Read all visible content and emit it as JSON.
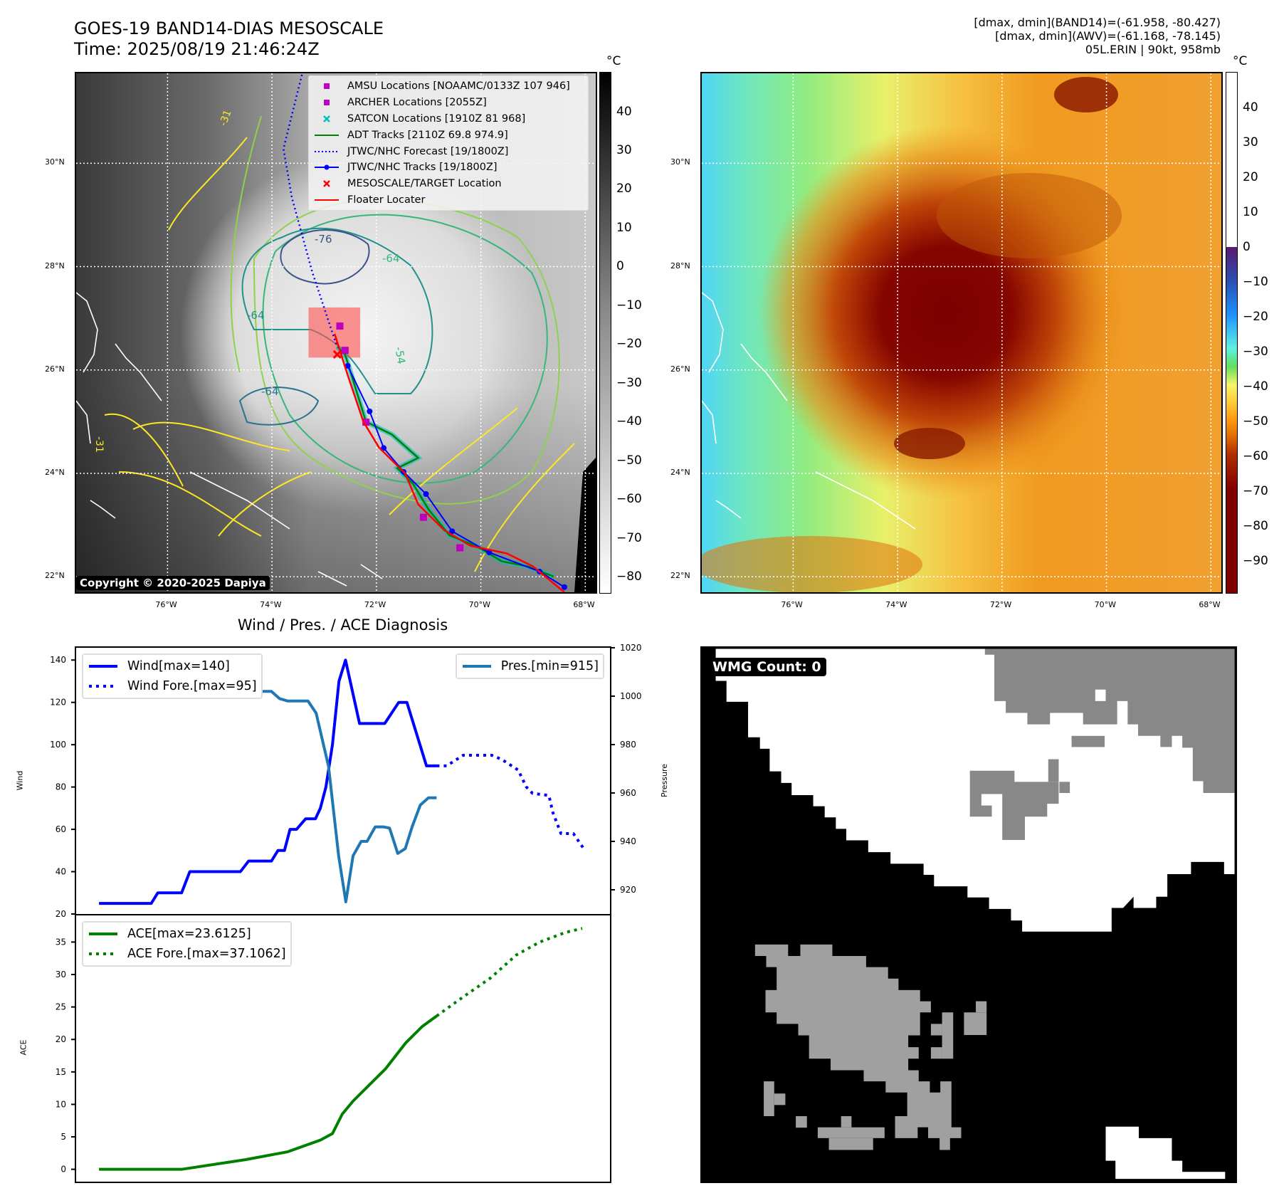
{
  "header": {
    "title_line1": "GOES-19 BAND14-DIAS MESOSCALE",
    "title_line2": "Time: 2025/08/19 21:46:24Z",
    "stats_line1": "[dmax, dmin](BAND14)=(-61.958, -80.427)",
    "stats_line2": "[dmax, dmin](AWV)=(-61.168, -78.145)",
    "stats_line3": "05L.ERIN | 90kt, 958mb"
  },
  "maps": {
    "lon_ticks": [
      -76,
      -74,
      -72,
      -70,
      -68
    ],
    "lon_labels": [
      "76°W",
      "74°W",
      "72°W",
      "70°W",
      "68°W"
    ],
    "lat_ticks": [
      30,
      28,
      26,
      24,
      22
    ],
    "lat_labels": [
      "30°N",
      "28°N",
      "26°N",
      "24°N",
      "22°N"
    ],
    "extent": {
      "lon_min": -77.75,
      "lon_max": -67.8,
      "lat_min": 21.7,
      "lat_max": 31.74
    },
    "copyright": "Copyright © 2020-2025 Dapiya",
    "legend": [
      {
        "label": "AMSU Locations [NOAAMC/0133Z 107 946]",
        "icon": "magenta-square",
        "color": "#c000c0"
      },
      {
        "label": "ARCHER Locations [2055Z]",
        "icon": "magenta-square",
        "color": "#c000c0"
      },
      {
        "label": "SATCON Locations [1910Z 81 968]",
        "icon": "cyan-x",
        "color": "#00c0c0"
      },
      {
        "label": "ADT Tracks [2110Z 69.8 974.9]",
        "icon": "green-line",
        "color": "#008000"
      },
      {
        "label": "JTWC/NHC Forecast [19/1800Z]",
        "icon": "blue-dotted-line",
        "color": "#0000ff"
      },
      {
        "label": "JTWC/NHC Tracks [19/1800Z]",
        "icon": "blue-line-dot",
        "color": "#0000ff"
      },
      {
        "label": "MESOSCALE/TARGET Location",
        "icon": "red-x",
        "color": "#ff0000"
      },
      {
        "label": "Floater Locater",
        "icon": "red-line",
        "color": "#ff0000"
      }
    ],
    "contour_labels": [
      "-76",
      "-64",
      "-64",
      "-64",
      "-54",
      "-31",
      "-31"
    ],
    "jtwc_track": [
      [
        -72.55,
        26.08
      ],
      [
        -72.13,
        25.2
      ],
      [
        -71.86,
        24.49
      ],
      [
        -71.48,
        24.03
      ],
      [
        -71.05,
        23.6
      ],
      [
        -70.55,
        22.88
      ],
      [
        -69.84,
        22.47
      ],
      [
        -68.875,
        22.1
      ],
      [
        -68.4,
        21.8
      ]
    ],
    "jtwc_forecast": [
      [
        -72.77,
        26.5
      ],
      [
        -73.23,
        27.9
      ],
      [
        -73.62,
        29.34
      ],
      [
        -73.78,
        30.28
      ],
      [
        -73.42,
        31.74
      ]
    ],
    "floater_track": [
      [
        -72.8,
        26.7
      ],
      [
        -72.55,
        25.9
      ],
      [
        -72.25,
        25.0
      ],
      [
        -71.95,
        24.5
      ],
      [
        -71.45,
        24.0
      ],
      [
        -71.2,
        23.4
      ],
      [
        -70.7,
        22.9
      ],
      [
        -70.2,
        22.6
      ],
      [
        -69.5,
        22.45
      ],
      [
        -69.0,
        22.2
      ],
      [
        -68.4,
        21.7
      ]
    ],
    "adt_track": [
      [
        -72.75,
        26.45
      ],
      [
        -72.6,
        26.3
      ],
      [
        -72.2,
        25.0
      ],
      [
        -71.7,
        24.75
      ],
      [
        -71.2,
        24.3
      ],
      [
        -71.6,
        24.1
      ],
      [
        -71.3,
        23.8
      ],
      [
        -71.0,
        23.3
      ],
      [
        -70.6,
        22.8
      ],
      [
        -70.1,
        22.6
      ],
      [
        -69.6,
        22.3
      ],
      [
        -69.1,
        22.2
      ],
      [
        -68.6,
        22.0
      ]
    ],
    "archer_points": [
      [
        -72.7,
        26.85
      ],
      [
        -72.6,
        26.38
      ],
      [
        -72.2,
        24.99
      ],
      [
        -71.1,
        23.15
      ],
      [
        -70.4,
        22.56
      ]
    ],
    "floater_box": {
      "lon_min": -73.3,
      "lon_max": -72.31,
      "lat_min": 26.24,
      "lat_max": 27.21
    },
    "target": [
      -72.75,
      26.3
    ],
    "left_colorbar": {
      "unit": "°C",
      "range": [
        50.2,
        -84.4
      ],
      "ticks": [
        40,
        30,
        20,
        10,
        0,
        -10,
        -20,
        -30,
        -40,
        -50,
        -60,
        -70,
        -80
      ],
      "tick_labels": [
        "40",
        "30",
        "20",
        "10",
        "0",
        "−10",
        "−20",
        "−30",
        "−40",
        "−50",
        "−60",
        "−70",
        "−80"
      ]
    },
    "right_colorbar": {
      "unit": "°C",
      "range": [
        50.1,
        -99.4
      ],
      "ticks": [
        40,
        30,
        20,
        10,
        0,
        -10,
        -20,
        -30,
        -40,
        -50,
        -60,
        -70,
        -80,
        -90
      ],
      "tick_labels": [
        "40",
        "30",
        "20",
        "10",
        "0",
        "−10",
        "−20",
        "−30",
        "−40",
        "−50",
        "−60",
        "−70",
        "−80",
        "−90"
      ]
    }
  },
  "chart_data": [
    {
      "type": "line",
      "title": "Wind / Pres. / ACE Diagnosis",
      "ylabel": "Wind",
      "y2label": "Pressure",
      "xlim": [
        -7,
        156.5
      ],
      "ylim": [
        20,
        145.8
      ],
      "y2lim": [
        910,
        1020
      ],
      "yticks": [
        20,
        40,
        60,
        80,
        100,
        120,
        140
      ],
      "y2ticks": [
        920,
        940,
        960,
        980,
        1000,
        1020
      ],
      "series": [
        {
          "name": "Wind[max=140]",
          "axis": "left",
          "style": "solid",
          "color": "#0000ff",
          "points": [
            [
              0,
              25
            ],
            [
              16,
              25
            ],
            [
              18,
              30
            ],
            [
              25.3,
              30
            ],
            [
              27.8,
              40
            ],
            [
              43.3,
              40
            ],
            [
              45.8,
              45
            ],
            [
              52.8,
              45
            ],
            [
              54.8,
              50
            ],
            [
              56.8,
              50
            ],
            [
              58.5,
              60
            ],
            [
              60.5,
              60
            ],
            [
              63.3,
              65
            ],
            [
              66.3,
              65
            ],
            [
              67.8,
              70
            ],
            [
              69.5,
              80
            ],
            [
              71.5,
              100
            ],
            [
              73.5,
              130
            ],
            [
              75.5,
              140
            ],
            [
              79.8,
              110
            ],
            [
              87.5,
              110
            ],
            [
              91.8,
              120
            ],
            [
              94.3,
              120
            ],
            [
              100.3,
              90
            ],
            [
              103.4,
              90
            ]
          ]
        },
        {
          "name": "Wind Fore.[max=95]",
          "axis": "left",
          "style": "dotted",
          "color": "#0000ff",
          "points": [
            [
              103.4,
              90
            ],
            [
              106.5,
              90
            ],
            [
              111.5,
              95
            ],
            [
              120.3,
              95
            ],
            [
              123.4,
              93
            ],
            [
              128.4,
              88
            ],
            [
              130.9,
              80
            ],
            [
              132.8,
              77
            ],
            [
              137.8,
              76
            ],
            [
              139,
              68
            ],
            [
              141.5,
              58
            ],
            [
              145.3,
              58
            ],
            [
              148.4,
              51
            ]
          ]
        },
        {
          "name": "Pres.[min=915]",
          "axis": "right",
          "style": "solid",
          "color": "#1f77b4",
          "points": [
            [
              0,
              1015
            ],
            [
              2.1,
              1015
            ],
            [
              4.6,
              1008
            ],
            [
              9,
              1006
            ],
            [
              25.3,
              1006
            ],
            [
              27.8,
              1004
            ],
            [
              34,
              1004
            ],
            [
              37,
              1006
            ],
            [
              40,
              1004
            ],
            [
              45.3,
              1002
            ],
            [
              52.8,
              1002
            ],
            [
              55.3,
              999
            ],
            [
              57.8,
              998
            ],
            [
              64,
              998
            ],
            [
              66.5,
              993
            ],
            [
              70.3,
              971
            ],
            [
              73.4,
              934
            ],
            [
              75.6,
              915
            ],
            [
              77.8,
              934
            ],
            [
              80.3,
              940
            ],
            [
              82.1,
              940
            ],
            [
              84.6,
              946
            ],
            [
              87.1,
              946
            ],
            [
              89,
              945.5
            ],
            [
              91.5,
              935
            ],
            [
              93.8,
              937
            ],
            [
              95.9,
              946
            ],
            [
              98.4,
              955
            ],
            [
              100.9,
              958
            ],
            [
              103.4,
              958
            ]
          ]
        }
      ]
    },
    {
      "type": "line",
      "ylabel": "ACE",
      "xlim": [
        -7,
        156.5
      ],
      "ylim": [
        -1.9,
        39.1
      ],
      "yticks": [
        0,
        5,
        10,
        15,
        20,
        25,
        30,
        35
      ],
      "series": [
        {
          "name": "ACE[max=23.6125]",
          "style": "solid",
          "color": "#008000",
          "points": [
            [
              0,
              0
            ],
            [
              25.3,
              0
            ],
            [
              45,
              1.5
            ],
            [
              57.8,
              2.7
            ],
            [
              67.8,
              4.5
            ],
            [
              71.5,
              5.5
            ],
            [
              74.5,
              8.5
            ],
            [
              77.8,
              10.5
            ],
            [
              87.8,
              15.5
            ],
            [
              94,
              19.5
            ],
            [
              99,
              22
            ],
            [
              103.4,
              23.6
            ]
          ]
        },
        {
          "name": "ACE Fore.[max=37.1062]",
          "style": "dotted",
          "color": "#008000",
          "points": [
            [
              103.4,
              23.6
            ],
            [
              110,
              26
            ],
            [
              120,
              29.5
            ],
            [
              127.8,
              33
            ],
            [
              135,
              35
            ],
            [
              143,
              36.5
            ],
            [
              148,
              37.1
            ]
          ]
        }
      ]
    }
  ],
  "wmg": {
    "label": "WMG Count: 0"
  }
}
